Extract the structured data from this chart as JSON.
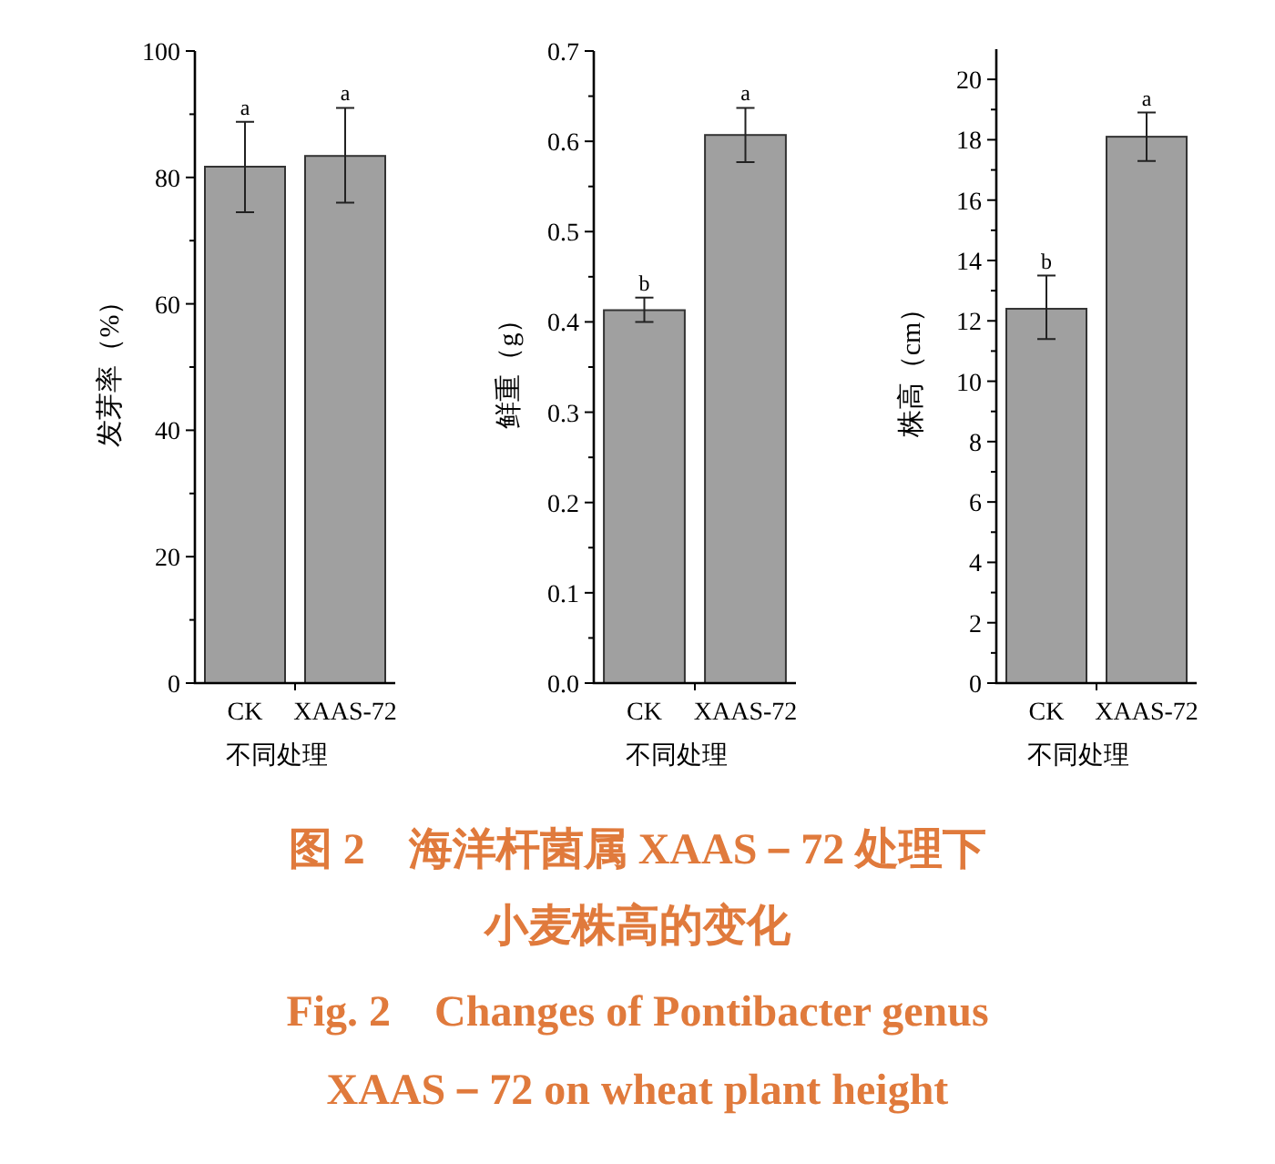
{
  "chart_data": [
    {
      "type": "bar",
      "ylabel": "发芽率（%）",
      "xlabel": "不同处理",
      "categories": [
        "CK",
        "XAAS-72"
      ],
      "color": "#a0a0a0",
      "values": [
        81.7,
        83.4
      ],
      "errors": [
        [
          74.5,
          88.8
        ],
        [
          76,
          91
        ]
      ],
      "ylim": [
        0,
        100
      ],
      "yticks": [
        0,
        20,
        40,
        60,
        80,
        100
      ],
      "annotations": [
        {
          "text": "a",
          "x": "CK",
          "y": 88.8
        },
        {
          "text": "a",
          "x": "XAAS-72",
          "y": 91
        }
      ]
    },
    {
      "type": "bar",
      "ylabel": "鲜重（g）",
      "xlabel": "不同处理",
      "categories": [
        "CK",
        "XAAS-72"
      ],
      "color": "#a0a0a0",
      "values": [
        0.413,
        0.607
      ],
      "errors": [
        [
          0.4,
          0.427
        ],
        [
          0.577,
          0.637
        ]
      ],
      "ylim": [
        0,
        0.7
      ],
      "yticks": [
        {
          "value": 0,
          "label": "0.0"
        },
        {
          "value": 0.1,
          "label": "0.1"
        },
        {
          "value": 0.2,
          "label": "0.2"
        },
        {
          "value": 0.3,
          "label": "0.3"
        },
        {
          "value": 0.4,
          "label": "0.4"
        },
        {
          "value": 0.5,
          "label": "0.5"
        },
        {
          "value": 0.6,
          "label": "0.6"
        },
        {
          "value": 0.7,
          "label": "0.7"
        }
      ],
      "annotations": [
        {
          "text": "b",
          "x": "CK",
          "y": 0.427
        },
        {
          "text": "a",
          "x": "XAAS-72",
          "y": 0.637
        }
      ]
    },
    {
      "type": "bar",
      "ylabel": "株高（cm）",
      "xlabel": "不同处理",
      "categories": [
        "CK",
        "XAAS-72"
      ],
      "color": "#a0a0a0",
      "values": [
        12.4,
        18.1
      ],
      "errors": [
        [
          11.4,
          13.5
        ],
        [
          17.3,
          18.9
        ]
      ],
      "ylim": [
        0,
        21
      ],
      "yticks": [
        0,
        2,
        4,
        6,
        8,
        10,
        12,
        14,
        16,
        18,
        20
      ],
      "annotations": [
        {
          "text": "b",
          "x": "CK",
          "y": 13.5
        },
        {
          "text": "a",
          "x": "XAAS-72",
          "y": 18.9
        }
      ]
    },
    {
      "type": "other",
      "annotations": [
        "图 2　海洋杆菌属 XAAS－72 处理下",
        "小麦株高的变化",
        "Fig. 2　Changes of Pontibacter genus",
        "XAAS－72 on wheat plant height"
      ]
    }
  ]
}
